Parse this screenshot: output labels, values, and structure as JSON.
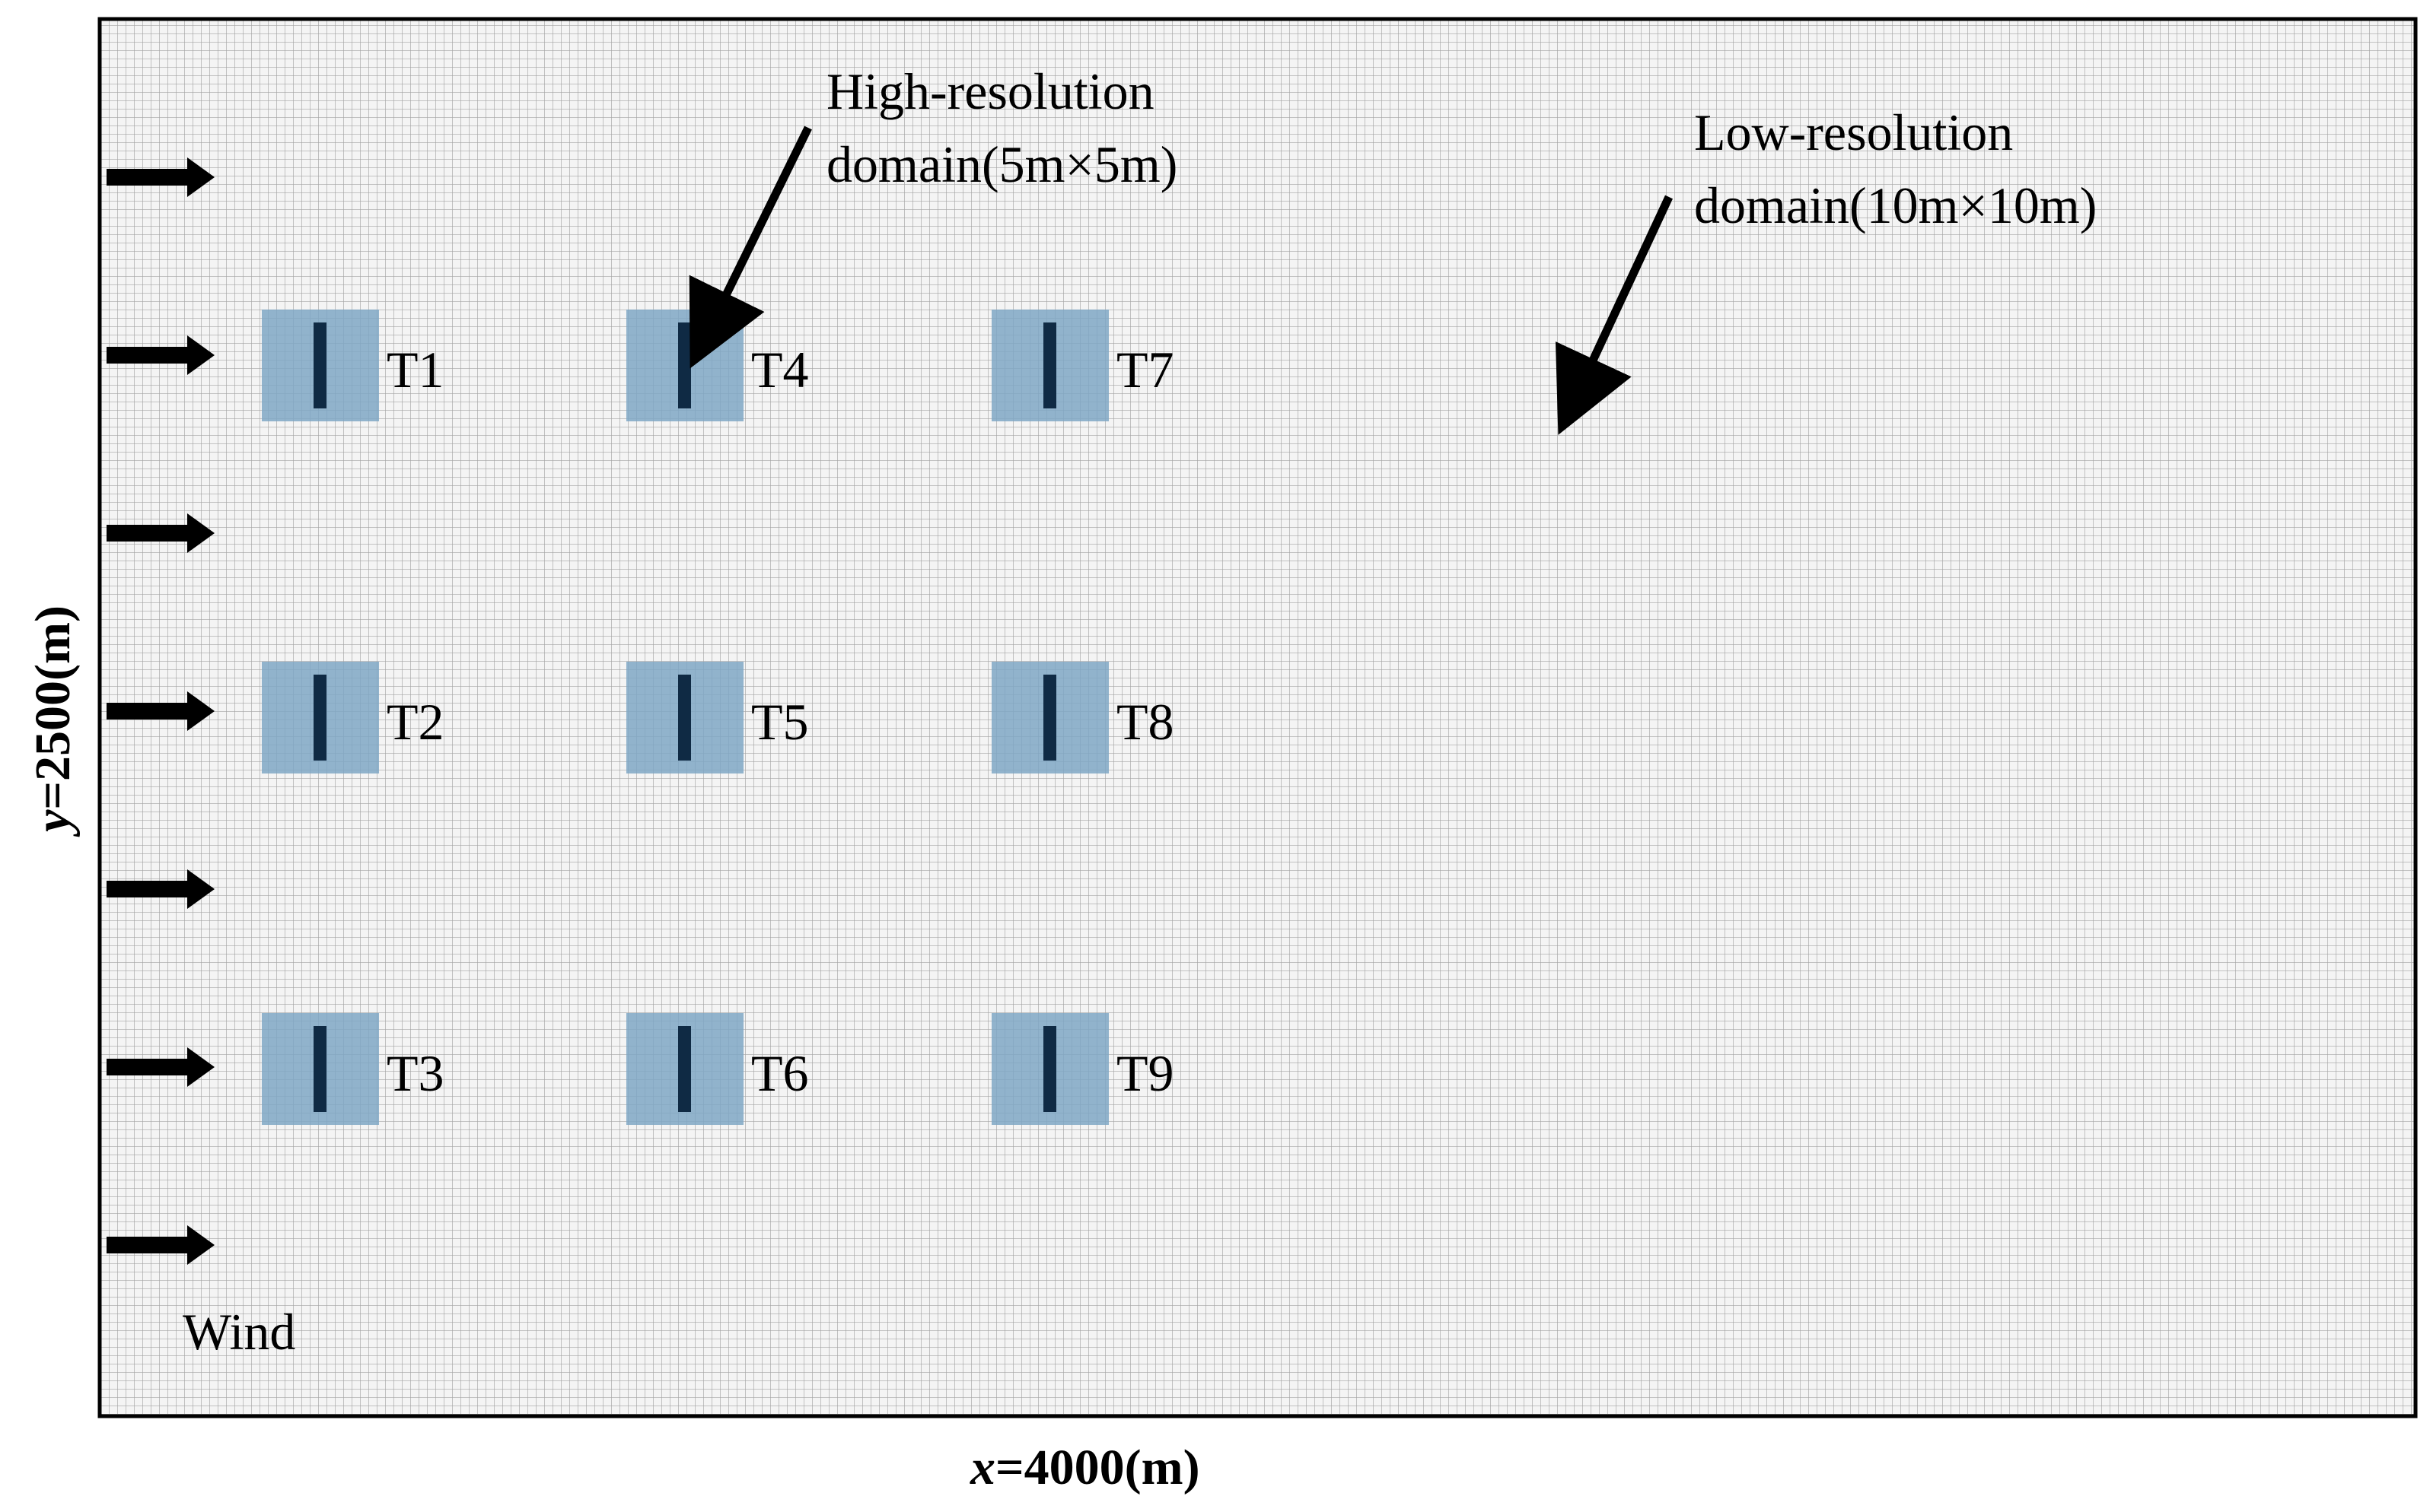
{
  "domain_box": {
    "grid_color": "#9a9a9a",
    "background": "#f4f4f4",
    "border_color": "#000000"
  },
  "annotations": {
    "high_res": {
      "line1": "High-resolution",
      "line2": "domain(5m×5m)"
    },
    "low_res": {
      "line1": "Low-resolution",
      "line2": "domain(10m×10m)"
    }
  },
  "axes": {
    "x_var": "x",
    "x_rest": "=4000(m)",
    "y_var": "y",
    "y_rest": "=2500(m)"
  },
  "wind": {
    "label": "Wind",
    "arrow_count": 7
  },
  "turbines": [
    {
      "id": "T1"
    },
    {
      "id": "T2"
    },
    {
      "id": "T3"
    },
    {
      "id": "T4"
    },
    {
      "id": "T5"
    },
    {
      "id": "T6"
    },
    {
      "id": "T7"
    },
    {
      "id": "T8"
    },
    {
      "id": "T9"
    }
  ],
  "colors": {
    "refinement_box": "#7fa7c4",
    "turbine_bar": "#0f2a44",
    "arrow": "#000000"
  }
}
